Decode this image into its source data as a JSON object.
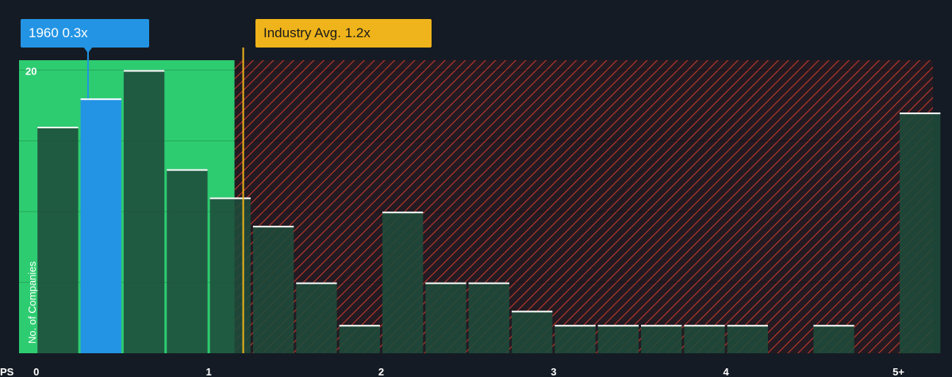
{
  "callouts": {
    "company": "1960 0.3x",
    "industry": "Industry Avg. 1.2x"
  },
  "colors": {
    "background": "#151b24",
    "undervalued_zone": "#2ecc71",
    "company_bar": "#2394e4",
    "bar": "#1e4b3a",
    "overvalued_hatch": "#c0392b",
    "industry_line": "#efb41b"
  },
  "chart_data": {
    "type": "bar",
    "xlabel": "PS",
    "ylabel": "No. of Companies",
    "xlim": [
      -0.1,
      5.2
    ],
    "ylim": [
      0,
      20.7
    ],
    "x_ticks": [
      {
        "value": 0,
        "label": "0"
      },
      {
        "value": 1,
        "label": "1"
      },
      {
        "value": 2,
        "label": "2"
      },
      {
        "value": 3,
        "label": "3"
      },
      {
        "value": 4,
        "label": "4"
      },
      {
        "value": 5,
        "label": "5+"
      }
    ],
    "y_ticks": [
      {
        "value": 20,
        "label": "20"
      }
    ],
    "bin_width": 0.25,
    "bins": [
      {
        "start": 0.0,
        "count": 16
      },
      {
        "start": 0.25,
        "count": 18,
        "highlight": true
      },
      {
        "start": 0.5,
        "count": 20
      },
      {
        "start": 0.75,
        "count": 13
      },
      {
        "start": 1.0,
        "count": 11
      },
      {
        "start": 1.25,
        "count": 9
      },
      {
        "start": 1.5,
        "count": 5
      },
      {
        "start": 1.75,
        "count": 2
      },
      {
        "start": 2.0,
        "count": 10
      },
      {
        "start": 2.25,
        "count": 5
      },
      {
        "start": 2.5,
        "count": 5
      },
      {
        "start": 2.75,
        "count": 3
      },
      {
        "start": 3.0,
        "count": 2
      },
      {
        "start": 3.25,
        "count": 2
      },
      {
        "start": 3.5,
        "count": 2
      },
      {
        "start": 3.75,
        "count": 2
      },
      {
        "start": 4.0,
        "count": 2
      },
      {
        "start": 4.25,
        "count": 0
      },
      {
        "start": 4.5,
        "count": 2
      },
      {
        "start": 4.75,
        "count": 0
      },
      {
        "start": 5.0,
        "count": 17
      }
    ],
    "company_value": 0.3,
    "industry_avg": 1.2,
    "undervalued_until": 1.15,
    "grid": true
  }
}
